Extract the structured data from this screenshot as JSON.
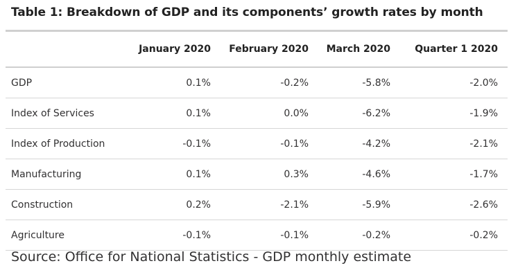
{
  "title": "Table 1: Breakdown of GDP and its components’ growth rates by month",
  "table": {
    "columns": [
      "",
      "January 2020",
      "February 2020",
      "March 2020",
      "Quarter 1 2020"
    ],
    "rows": [
      {
        "label": "GDP",
        "values": [
          "0.1%",
          "-0.2%",
          "-5.8%",
          "-2.0%"
        ]
      },
      {
        "label": "Index of Services",
        "values": [
          "0.1%",
          "0.0%",
          "-6.2%",
          "-1.9%"
        ]
      },
      {
        "label": "Index of Production",
        "values": [
          "-0.1%",
          "-0.1%",
          "-4.2%",
          "-2.1%"
        ]
      },
      {
        "label": "Manufacturing",
        "values": [
          "0.1%",
          "0.3%",
          "-4.6%",
          "-1.7%"
        ]
      },
      {
        "label": "Construction",
        "values": [
          "0.2%",
          "-2.1%",
          "-5.9%",
          "-2.6%"
        ]
      },
      {
        "label": "Agriculture",
        "values": [
          "-0.1%",
          "-0.1%",
          "-0.2%",
          "-0.2%"
        ]
      }
    ]
  },
  "source": "Source: Office for National Statistics - GDP monthly estimate",
  "colors": {
    "text": "#323132",
    "heading": "#222222",
    "rule": "#d6d6d6"
  }
}
